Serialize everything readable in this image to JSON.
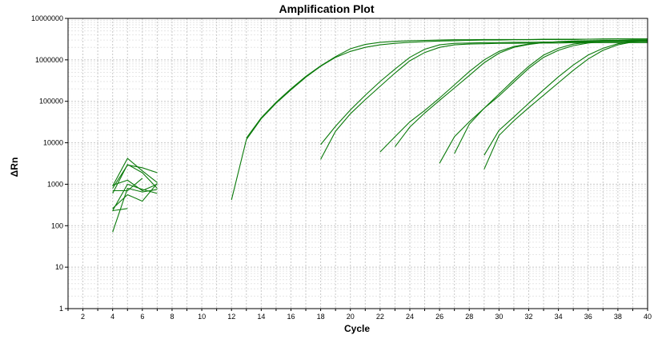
{
  "chart_data": {
    "type": "line",
    "title": "Amplification Plot",
    "xlabel": "Cycle",
    "ylabel": "ΔRn",
    "xlim": [
      1,
      40
    ],
    "ylim": [
      1,
      10000000
    ],
    "yscale": "log",
    "grid": true,
    "legend": "none",
    "line_color": "#0a7a0a",
    "x_ticks": [
      2,
      4,
      6,
      8,
      10,
      12,
      14,
      16,
      18,
      20,
      22,
      24,
      26,
      28,
      30,
      32,
      34,
      36,
      38,
      40
    ],
    "y_ticks": [
      1,
      10,
      100,
      1000,
      10000,
      100000,
      1000000,
      10000000
    ],
    "y_tick_labels": [
      "1",
      "10",
      "100",
      "1000",
      "10000",
      "100000",
      "1000000",
      "10000000"
    ],
    "series": [
      {
        "x": [
          12,
          13,
          14,
          15,
          16,
          17,
          18,
          19,
          20,
          21,
          22,
          23,
          24,
          25,
          26,
          27,
          28,
          29,
          30,
          31,
          32,
          33,
          34,
          35,
          36,
          37,
          38,
          39,
          40
        ],
        "y": [
          420,
          12000,
          38000,
          90000,
          190000,
          380000,
          700000,
          1150000,
          1600000,
          2000000,
          2300000,
          2500000,
          2650000,
          2750000,
          2850000,
          2900000,
          2950000,
          3000000,
          3000000,
          3050000,
          3050000,
          3100000,
          3100000,
          3100000,
          3150000,
          3150000,
          3200000,
          3200000,
          3200000
        ]
      },
      {
        "x": [
          13,
          14,
          15,
          16,
          17,
          18,
          19,
          20,
          21,
          22,
          23,
          24,
          25,
          26,
          27,
          28,
          29,
          30,
          31,
          32,
          33,
          34,
          35,
          36,
          37,
          38,
          39,
          40
        ],
        "y": [
          13000,
          40000,
          95000,
          200000,
          400000,
          720000,
          1200000,
          1850000,
          2350000,
          2650000,
          2800000,
          2900000,
          2950000,
          3000000,
          3050000,
          3050000,
          3100000,
          3100000,
          3100000,
          3100000,
          3150000,
          3150000,
          3150000,
          3150000,
          3200000,
          3200000,
          3200000,
          3200000
        ]
      },
      {
        "x": [
          18,
          19,
          20,
          21,
          22,
          23,
          24,
          25,
          26,
          27,
          28,
          29,
          30,
          31,
          32,
          33,
          34,
          35,
          36,
          37,
          38,
          39,
          40
        ],
        "y": [
          9000,
          25000,
          62000,
          140000,
          300000,
          600000,
          1150000,
          1800000,
          2300000,
          2500000,
          2550000,
          2600000,
          2600000,
          2650000,
          2650000,
          2700000,
          2700000,
          2700000,
          2700000,
          2750000,
          2750000,
          2750000,
          2750000
        ]
      },
      {
        "x": [
          18,
          19,
          20,
          21,
          22,
          23,
          24,
          25,
          26,
          27,
          28,
          29,
          30,
          31,
          32,
          33,
          34,
          35,
          36,
          37,
          38,
          39,
          40
        ],
        "y": [
          4000,
          19000,
          50000,
          110000,
          230000,
          480000,
          950000,
          1500000,
          2000000,
          2300000,
          2400000,
          2450000,
          2500000,
          2500000,
          2550000,
          2550000,
          2550000,
          2600000,
          2600000,
          2600000,
          2600000,
          2600000,
          2600000
        ]
      },
      {
        "x": [
          22,
          23,
          24,
          25,
          26,
          27,
          28,
          29,
          30,
          31,
          32,
          33,
          34,
          35,
          36,
          37,
          38,
          39,
          40
        ],
        "y": [
          6000,
          14000,
          32000,
          60000,
          120000,
          250000,
          520000,
          1000000,
          1600000,
          2100000,
          2400000,
          2600000,
          2700000,
          2750000,
          2800000,
          2800000,
          2850000,
          2850000,
          2850000
        ]
      },
      {
        "x": [
          23,
          24,
          25,
          26,
          27,
          28,
          29,
          30,
          31,
          32,
          33,
          34,
          35,
          36,
          37,
          38,
          39,
          40
        ],
        "y": [
          8000,
          24000,
          52000,
          105000,
          210000,
          420000,
          850000,
          1450000,
          2000000,
          2350000,
          2600000,
          2750000,
          2850000,
          2900000,
          2950000,
          2950000,
          3000000,
          3000000
        ]
      },
      {
        "x": [
          26,
          27,
          28,
          29,
          30,
          31,
          32,
          33,
          34,
          35,
          36,
          37,
          38,
          39,
          40
        ],
        "y": [
          3200,
          14000,
          32000,
          68000,
          150000,
          330000,
          700000,
          1300000,
          1900000,
          2400000,
          2650000,
          2800000,
          2900000,
          2950000,
          3000000
        ]
      },
      {
        "x": [
          27,
          28,
          29,
          30,
          31,
          32,
          33,
          34,
          35,
          36,
          37,
          38,
          39,
          40
        ],
        "y": [
          5500,
          28000,
          68000,
          135000,
          290000,
          620000,
          1150000,
          1700000,
          2200000,
          2550000,
          2750000,
          2850000,
          2900000,
          2900000
        ]
      },
      {
        "x": [
          29,
          30,
          31,
          32,
          33,
          34,
          35,
          36,
          37,
          38,
          39,
          40
        ],
        "y": [
          5000,
          20000,
          42000,
          90000,
          190000,
          390000,
          750000,
          1300000,
          1900000,
          2450000,
          2750000,
          2900000
        ]
      },
      {
        "x": [
          29,
          30,
          31,
          32,
          33,
          34,
          35,
          36,
          37,
          38,
          39,
          40
        ],
        "y": [
          2300,
          15000,
          34000,
          70000,
          140000,
          280000,
          560000,
          1050000,
          1700000,
          2300000,
          2700000,
          2850000
        ]
      },
      {
        "x": [
          4,
          5,
          6,
          7
        ],
        "y": [
          900,
          4200,
          2100,
          1100
        ]
      },
      {
        "x": [
          4,
          5,
          6,
          7
        ],
        "y": [
          800,
          2900,
          2500,
          1900
        ]
      },
      {
        "x": [
          4,
          5,
          6,
          7
        ],
        "y": [
          600,
          3000,
          1900,
          800
        ]
      },
      {
        "x": [
          4,
          5,
          6,
          7
        ],
        "y": [
          950,
          1250,
          700,
          1000
        ]
      },
      {
        "x": [
          4,
          5,
          6,
          7
        ],
        "y": [
          230,
          1000,
          750,
          600
        ]
      },
      {
        "x": [
          4,
          5,
          6,
          7
        ],
        "y": [
          260,
          560,
          390,
          1050
        ]
      },
      {
        "x": [
          4,
          5,
          6,
          7
        ],
        "y": [
          70,
          800,
          650,
          750
        ]
      },
      {
        "x": [
          4,
          5,
          6
        ],
        "y": [
          700,
          700,
          1400
        ]
      },
      {
        "x": [
          4,
          5
        ],
        "y": [
          230,
          260
        ]
      }
    ]
  }
}
